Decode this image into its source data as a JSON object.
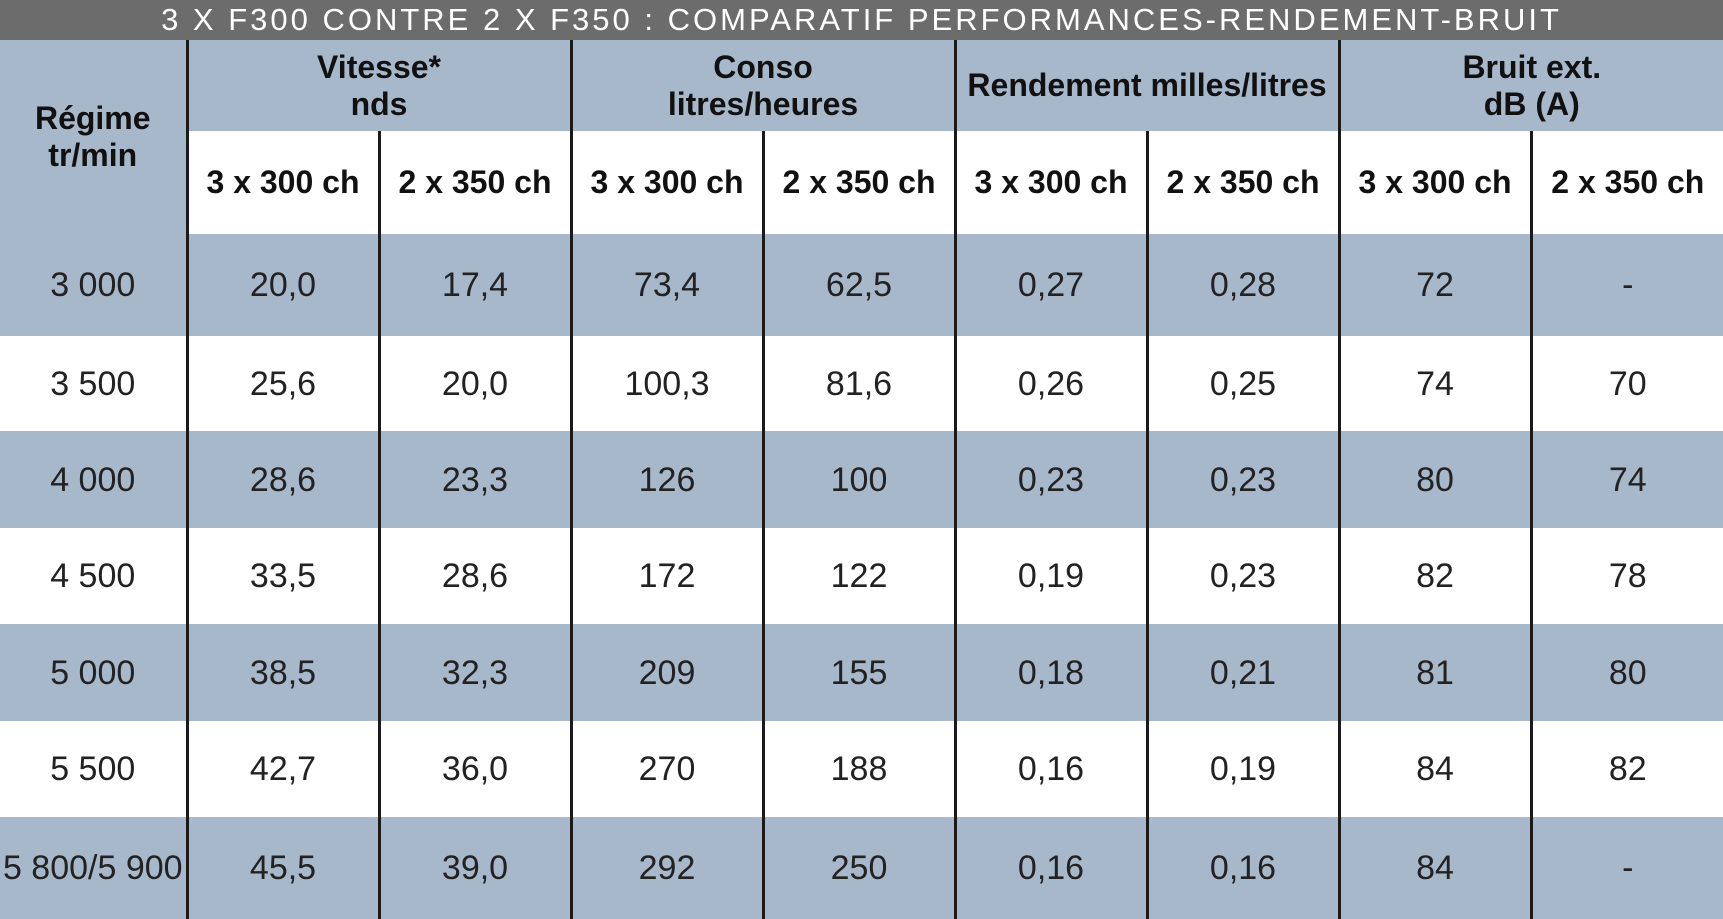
{
  "title": "3 X F300 CONTRE 2 X F350 : COMPARATIF PERFORMANCES-RENDEMENT-BRUIT",
  "table": {
    "group_headers": [
      [
        "Régime",
        "tr/min"
      ],
      [
        "Vitesse*",
        "nds"
      ],
      [
        "Conso",
        "litres/heures"
      ],
      [
        "Rendement milles/litres"
      ],
      [
        "Bruit ext.",
        "dB (A)"
      ]
    ],
    "sub_headers": [
      "3 x 300 ch",
      "2 x 350 ch",
      "3 x 300 ch",
      "2 x 350 ch",
      "3 x 300 ch",
      "2 x 350 ch",
      "3 x 300 ch",
      "2 x 350 ch"
    ],
    "rows": [
      [
        "3 000",
        "20,0",
        "17,4",
        "73,4",
        "62,5",
        "0,27",
        "0,28",
        "72",
        "-"
      ],
      [
        "3 500",
        "25,6",
        "20,0",
        "100,3",
        "81,6",
        "0,26",
        "0,25",
        "74",
        "70"
      ],
      [
        "4 000",
        "28,6",
        "23,3",
        "126",
        "100",
        "0,23",
        "0,23",
        "80",
        "74"
      ],
      [
        "4 500",
        "33,5",
        "28,6",
        "172",
        "122",
        "0,19",
        "0,23",
        "82",
        "78"
      ],
      [
        "5 000",
        "38,5",
        "32,3",
        "209",
        "155",
        "0,18",
        "0,21",
        "81",
        "80"
      ],
      [
        "5 500",
        "42,7",
        "36,0",
        "270",
        "188",
        "0,16",
        "0,19",
        "84",
        "82"
      ],
      [
        "5 800/5 900",
        "45,5",
        "39,0",
        "292",
        "250",
        "0,16",
        "0,16",
        "84",
        "-"
      ]
    ]
  }
}
